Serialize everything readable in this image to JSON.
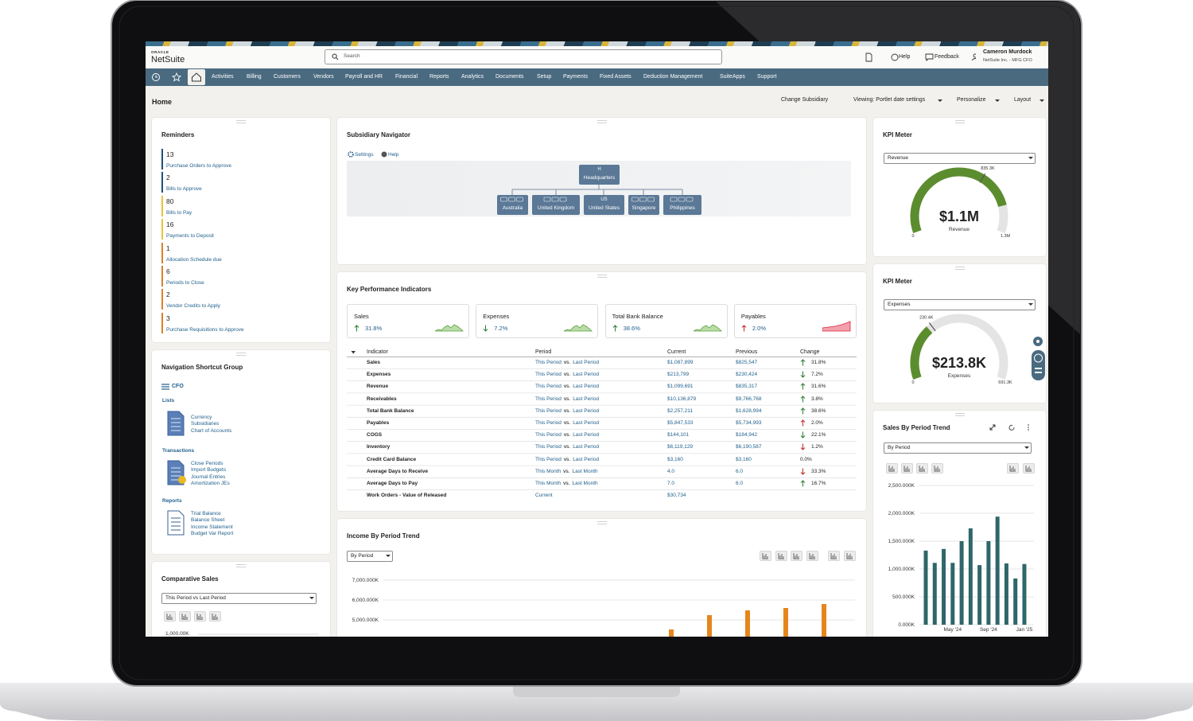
{
  "header": {
    "brand_top": "ORACLE",
    "brand": "NetSuite",
    "search_placeholder": "Search",
    "help": "Help",
    "feedback": "Feedback",
    "user_name": "Cameron Murdock",
    "user_role": "NetSuite Inc. - MFG CFO"
  },
  "menu": [
    "Activities",
    "Billing",
    "Customers",
    "Vendors",
    "Payroll and HR",
    "Financial",
    "Reports",
    "Analytics",
    "Documents",
    "Setup",
    "Payments",
    "Fixed Assets",
    "Deduction Management",
    "SuiteApps",
    "Support"
  ],
  "page": {
    "title": "Home",
    "actions": [
      "Change Subsidiary",
      "Viewing: Portlet date settings",
      "Personalize",
      "Layout"
    ]
  },
  "reminders": {
    "title": "Reminders",
    "items": [
      {
        "count": 13,
        "label": "Purchase Orders to Approve",
        "color": "#1f4f78"
      },
      {
        "count": 2,
        "label": "Bills to Approve",
        "color": "#1f4f78"
      },
      {
        "count": 80,
        "label": "Bills to Pay",
        "color": "#e8c33a"
      },
      {
        "count": 16,
        "label": "Payments to Deposit",
        "color": "#e8c33a"
      },
      {
        "count": 1,
        "label": "Allocation Schedule due",
        "color": "#d9822b"
      },
      {
        "count": 6,
        "label": "Periods to Close",
        "color": "#d9822b"
      },
      {
        "count": 2,
        "label": "Vendor Credits to Apply",
        "color": "#d9822b"
      },
      {
        "count": 3,
        "label": "Purchase Requisitions to Approve",
        "color": "#d9822b"
      }
    ]
  },
  "shortcuts": {
    "title": "Navigation Shortcut Group",
    "group": "CFO",
    "sections": [
      {
        "name": "Lists",
        "links": [
          "Currency",
          "Subsidiaries",
          "Chart of Accounts"
        ]
      },
      {
        "name": "Transactions",
        "links": [
          "Close Periods",
          "Import Budgets",
          "Journal Entries",
          "Amortization JEs"
        ]
      },
      {
        "name": "Reports",
        "links": [
          "Trial Balance",
          "Balance Sheet",
          "Income Statement",
          "Budget Var Report"
        ]
      }
    ]
  },
  "comparative_sales": {
    "title": "Comparative Sales",
    "filter": "This Period vs Last Period",
    "yticks": [
      {
        "value": 1000,
        "label": "1,000.00K"
      }
    ]
  },
  "subsidiary": {
    "title": "Subsidiary Navigator",
    "settings": "Settings",
    "help": "Help",
    "root": {
      "code": "H",
      "name": "Headquarters"
    },
    "children": [
      {
        "name": "Australia"
      },
      {
        "name": "United Kingdom"
      },
      {
        "code": "US",
        "name": "United States"
      },
      {
        "name": "Singapore"
      },
      {
        "name": "Philippines"
      }
    ]
  },
  "kpi": {
    "title": "Key Performance Indicators",
    "tiles": [
      {
        "name": "Sales",
        "change": "31.8%",
        "trend": "up",
        "good": true
      },
      {
        "name": "Expenses",
        "change": "7.2%",
        "trend": "down",
        "good": true
      },
      {
        "name": "Total Bank Balance",
        "change": "38.6%",
        "trend": "up",
        "good": true
      },
      {
        "name": "Payables",
        "change": "2.0%",
        "trend": "up",
        "good": false
      }
    ],
    "columns": [
      "Indicator",
      "Period",
      "Current",
      "Previous",
      "Change"
    ],
    "rows": [
      {
        "indicator": "Sales",
        "period": [
          "This Period",
          "vs.",
          "Last Period"
        ],
        "current": "$1,087,899",
        "previous": "$825,547",
        "change": "31.8%",
        "trend": "up",
        "good": true
      },
      {
        "indicator": "Expenses",
        "period": [
          "This Period",
          "vs.",
          "Last Period"
        ],
        "current": "$213,799",
        "previous": "$230,424",
        "change": "7.2%",
        "trend": "down",
        "good": true
      },
      {
        "indicator": "Revenue",
        "period": [
          "This Period",
          "vs.",
          "Last Period"
        ],
        "current": "$1,099,691",
        "previous": "$835,317",
        "change": "31.6%",
        "trend": "up",
        "good": true
      },
      {
        "indicator": "Receivables",
        "period": [
          "This Period",
          "vs.",
          "Last Period"
        ],
        "current": "$10,136,879",
        "previous": "$9,766,768",
        "change": "3.8%",
        "trend": "up",
        "good": true
      },
      {
        "indicator": "Total Bank Balance",
        "period": [
          "This Period",
          "vs.",
          "Last Period"
        ],
        "current": "$2,257,211",
        "previous": "$1,628,994",
        "change": "38.6%",
        "trend": "up",
        "good": true
      },
      {
        "indicator": "Payables",
        "period": [
          "This Period",
          "vs.",
          "Last Period"
        ],
        "current": "$5,847,533",
        "previous": "$5,734,993",
        "change": "2.0%",
        "trend": "up",
        "good": false
      },
      {
        "indicator": "COGS",
        "period": [
          "This Period",
          "vs.",
          "Last Period"
        ],
        "current": "$144,101",
        "previous": "$184,942",
        "change": "22.1%",
        "trend": "down",
        "good": true
      },
      {
        "indicator": "Inventory",
        "period": [
          "This Period",
          "vs.",
          "Last Period"
        ],
        "current": "$6,119,129",
        "previous": "$6,190,587",
        "change": "1.2%",
        "trend": "down",
        "good": false
      },
      {
        "indicator": "Credit Card Balance",
        "period": [
          "This Period",
          "vs.",
          "Last Period"
        ],
        "current": "$3,160",
        "previous": "$3,160",
        "change": "0.0%"
      },
      {
        "indicator": "Average Days to Receive",
        "period": [
          "This Month",
          "vs.",
          "Last Month"
        ],
        "current": "4.0",
        "previous": "6.0",
        "change": "33.3%",
        "trend": "down",
        "good": false
      },
      {
        "indicator": "Average Days to Pay",
        "period": [
          "This Month",
          "vs.",
          "Last Month"
        ],
        "current": "7.0",
        "previous": "6.0",
        "change": "16.7%",
        "trend": "up",
        "good": true
      },
      {
        "indicator": "Work Orders - Value of Released",
        "period": [
          "Current"
        ],
        "current": "$30,734"
      }
    ]
  },
  "income_trend": {
    "type": "bar",
    "title": "Income By Period Trend",
    "filter": "By Period",
    "color": "#e5861c",
    "ylim": [
      0,
      7000
    ],
    "yticks": [
      {
        "value": 7000,
        "label": "7,000.000K"
      },
      {
        "value": 6000,
        "label": "6,000.000K"
      },
      {
        "value": 5000,
        "label": "5,000.000K"
      }
    ],
    "categories": [
      null,
      null,
      null,
      null,
      null
    ],
    "values": [
      4520,
      5240,
      5480,
      5600,
      5800
    ]
  },
  "kpi_meters": [
    {
      "title": "KPI Meter",
      "metric": "Revenue",
      "value": 1100000,
      "value_label": "$1.1M",
      "caption": "Revenue",
      "min": 0,
      "max": 1300000,
      "max_label": "1.3M",
      "target": 835300,
      "target_label": "835.3K",
      "color": "#5b8d2f"
    },
    {
      "title": "KPI Meter",
      "metric": "Expenses",
      "value": 213800,
      "value_label": "$213.8K",
      "caption": "Expenses",
      "min": 0,
      "max": 691300,
      "max_label": "691.3K",
      "target": 230400,
      "target_label": "230.4K",
      "color": "#5b8d2f"
    }
  ],
  "sales_trend": {
    "type": "bar",
    "title": "Sales By Period Trend",
    "filter": "By Period",
    "color": "#2f6669",
    "ylim": [
      0,
      2500
    ],
    "yticks": [
      {
        "value": 2500,
        "label": "2,500.000K"
      },
      {
        "value": 2000,
        "label": "2,000.000K"
      },
      {
        "value": 1500,
        "label": "1,500.000K"
      },
      {
        "value": 1000,
        "label": "1,000.000K"
      },
      {
        "value": 500,
        "label": "500.000K"
      },
      {
        "value": 0,
        "label": "0.000K"
      }
    ],
    "categories": [
      null,
      null,
      null,
      "May '24",
      null,
      null,
      null,
      "Sep '24",
      null,
      null,
      null,
      "Jan '25"
    ],
    "values": [
      1330,
      1110,
      1360,
      1110,
      1500,
      1730,
      1070,
      1500,
      1940,
      1100,
      830,
      1090
    ]
  }
}
